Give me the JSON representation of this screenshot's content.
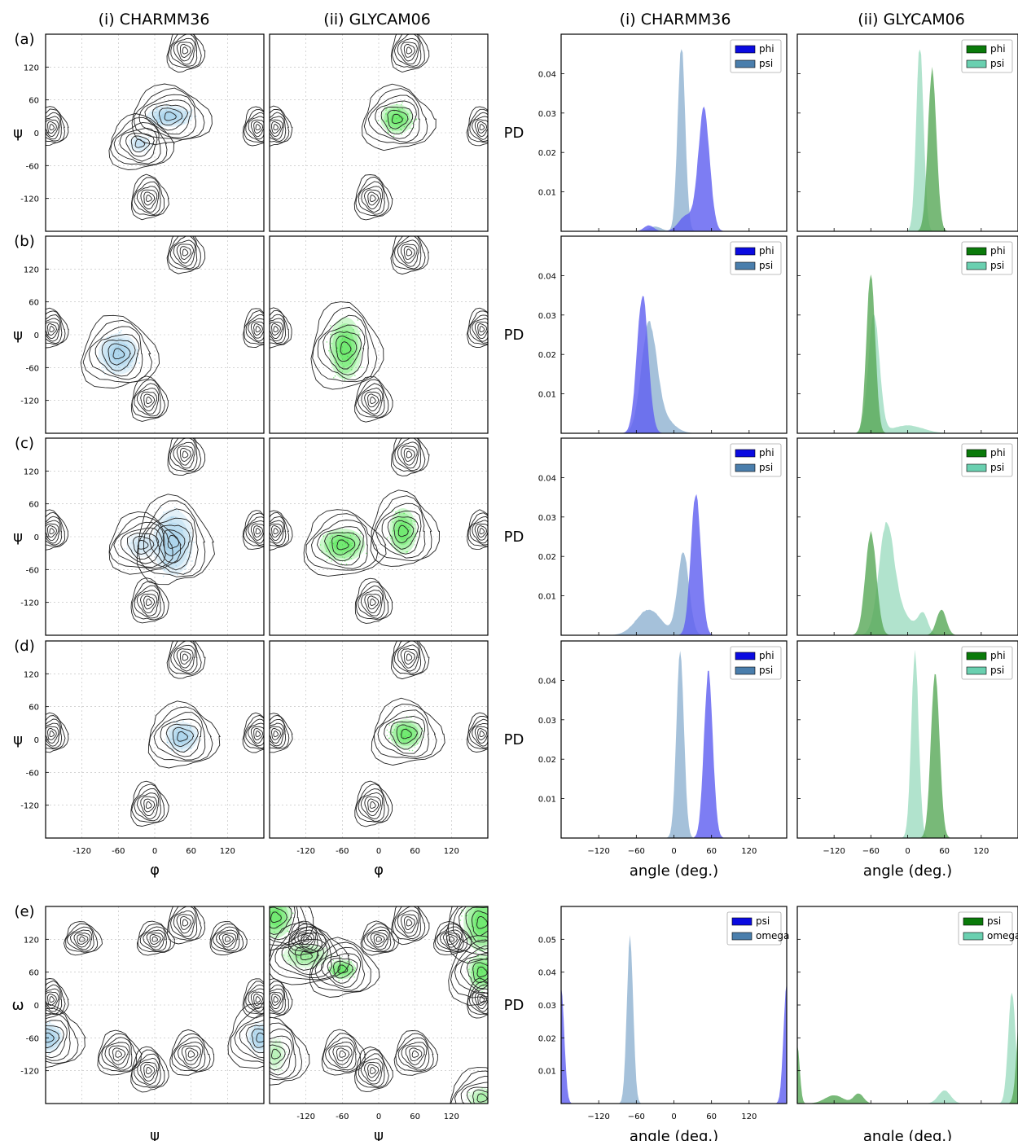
{
  "column_titles": [
    "(i) CHARMM36",
    "(ii) GLYCAM06",
    "(i) CHARMM36",
    "(ii) GLYCAM06"
  ],
  "rows": [
    {
      "letter": "(a)",
      "left_ylabel": "ψ",
      "show_bottom_ticks": false,
      "xlabel_left": "",
      "xlabel_right": "",
      "right_xlabel": "",
      "charmm_spots": [
        [
          25,
          30,
          25,
          13,
          1
        ],
        [
          -25,
          -20,
          12,
          10,
          0.55
        ]
      ],
      "glycam_spots": [
        [
          30,
          25,
          18,
          18,
          1
        ]
      ],
      "hist_charmm": {
        "legend": [
          "phi",
          "psi"
        ],
        "ymax": 0.05,
        "yticks": [
          0.01,
          0.02,
          0.03,
          0.04
        ],
        "peaks": {
          "a": [
            [
              48,
              9,
              0.031
            ],
            [
              20,
              12,
              0.004
            ],
            [
              -40,
              8,
              0.0015
            ]
          ],
          "b": [
            [
              12,
              6,
              0.047
            ],
            [
              -30,
              10,
              0.0012
            ]
          ]
        }
      },
      "hist_glycam": {
        "legend": [
          "phi",
          "psi"
        ],
        "peaks": {
          "a": [
            [
              40,
              7,
              0.041
            ]
          ],
          "b": [
            [
              20,
              6,
              0.047
            ]
          ]
        }
      }
    },
    {
      "letter": "(b)",
      "left_ylabel": "ψ",
      "show_bottom_ticks": false,
      "xlabel_left": "",
      "xlabel_right": "",
      "right_xlabel": "",
      "charmm_spots": [
        [
          -60,
          -35,
          22,
          25,
          1
        ]
      ],
      "glycam_spots": [
        [
          -55,
          -25,
          18,
          38,
          1
        ]
      ],
      "hist_charmm": {
        "legend": [
          "phi",
          "psi"
        ],
        "ymax": 0.05,
        "yticks": [
          0.01,
          0.02,
          0.03,
          0.04
        ],
        "peaks": {
          "a": [
            [
              -50,
              9,
              0.035
            ]
          ],
          "b": [
            [
              -40,
              12,
              0.026
            ],
            [
              -20,
              18,
              0.004
            ]
          ]
        }
      },
      "hist_glycam": {
        "legend": [
          "phi",
          "psi"
        ],
        "peaks": {
          "a": [
            [
              -60,
              7,
              0.041
            ]
          ],
          "b": [
            [
              -55,
              9,
              0.03
            ],
            [
              0,
              25,
              0.002
            ]
          ]
        }
      }
    },
    {
      "letter": "(c)",
      "left_ylabel": "ψ",
      "show_bottom_ticks": false,
      "xlabel_left": "",
      "xlabel_right": "",
      "right_xlabel": "",
      "charmm_spots": [
        [
          30,
          -10,
          22,
          40,
          1
        ],
        [
          -20,
          -15,
          18,
          15,
          0.5
        ]
      ],
      "glycam_spots": [
        [
          -60,
          -15,
          25,
          20,
          1
        ],
        [
          40,
          10,
          15,
          28,
          1
        ]
      ],
      "hist_charmm": {
        "legend": [
          "phi",
          "psi"
        ],
        "ymax": 0.05,
        "yticks": [
          0.01,
          0.02,
          0.03,
          0.04
        ],
        "peaks": {
          "a": [
            [
              35,
              8,
              0.036
            ]
          ],
          "b": [
            [
              15,
              9,
              0.021
            ],
            [
              -40,
              20,
              0.0065
            ]
          ]
        }
      },
      "hist_glycam": {
        "legend": [
          "phi",
          "psi"
        ],
        "peaks": {
          "a": [
            [
              -60,
              9,
              0.026
            ],
            [
              55,
              8,
              0.0065
            ]
          ],
          "b": [
            [
              -35,
              12,
              0.025
            ],
            [
              -15,
              20,
              0.006
            ],
            [
              25,
              8,
              0.005
            ]
          ]
        }
      }
    },
    {
      "letter": "(d)",
      "left_ylabel": "ψ",
      "show_bottom_ticks": true,
      "xlabel_left": "φ",
      "xlabel_right": "φ",
      "right_xlabel": "angle (deg.)",
      "charmm_spots": [
        [
          45,
          5,
          18,
          18,
          1
        ]
      ],
      "glycam_spots": [
        [
          45,
          10,
          18,
          18,
          1
        ]
      ],
      "hist_charmm": {
        "legend": [
          "phi",
          "psi"
        ],
        "ymax": 0.05,
        "yticks": [
          0.01,
          0.02,
          0.03,
          0.04
        ],
        "peaks": {
          "a": [
            [
              55,
              7,
              0.042
            ]
          ],
          "b": [
            [
              10,
              6,
              0.047
            ]
          ]
        }
      },
      "hist_glycam": {
        "legend": [
          "phi",
          "psi"
        ],
        "peaks": {
          "a": [
            [
              45,
              7,
              0.042
            ]
          ],
          "b": [
            [
              12,
              6,
              0.047
            ]
          ]
        }
      }
    },
    {
      "letter": "(e)",
      "left_ylabel": "ω",
      "show_bottom_ticks": true,
      "xlabel_left": "ψ",
      "xlabel_right": "ψ",
      "right_xlabel": "angle (deg.)",
      "charmm_spots": [
        [
          -175,
          -60,
          15,
          18,
          1
        ],
        [
          175,
          -60,
          15,
          18,
          1
        ]
      ],
      "glycam_spots": [
        [
          -170,
          160,
          18,
          25,
          1
        ],
        [
          170,
          150,
          20,
          35,
          1
        ],
        [
          -120,
          90,
          25,
          15,
          0.6
        ],
        [
          -60,
          65,
          15,
          12,
          1
        ],
        [
          170,
          60,
          15,
          22,
          1
        ],
        [
          -170,
          -90,
          10,
          20,
          0.4
        ],
        [
          170,
          -170,
          15,
          12,
          0.5
        ]
      ],
      "hist_charmm": {
        "legend": [
          "psi",
          "omega"
        ],
        "ymax": 0.06,
        "yticks": [
          0.01,
          0.02,
          0.03,
          0.04,
          0.05
        ],
        "peaks": {
          "a": [
            [
              -180,
              5,
              0.035
            ],
            [
              180,
              5,
              0.037
            ]
          ],
          "b": [
            [
              -70,
              5,
              0.051
            ]
          ]
        }
      },
      "hist_glycam": {
        "legend": [
          "psi",
          "omega"
        ],
        "peaks": {
          "a": [
            [
              -180,
              4,
              0.018
            ],
            [
              -120,
              15,
              0.0025
            ],
            [
              -80,
              8,
              0.003
            ],
            [
              185,
              6,
              0.034
            ]
          ],
          "b": [
            [
              60,
              10,
              0.004
            ],
            [
              170,
              6,
              0.034
            ]
          ]
        }
      }
    }
  ],
  "right_ylabel": "PD",
  "xticks": [
    -120,
    -60,
    0,
    60,
    120
  ],
  "yticks": [
    120,
    60,
    0,
    -60,
    -120
  ],
  "colors": {
    "charmm_spot": "#7ec0e4",
    "glycam_spot": "#22dd22",
    "charmm_a": "#6060f0",
    "charmm_b": "#9bbad6",
    "glycam_a": "#5aaa5a",
    "glycam_b": "#a8e0c8",
    "charmm_legend_a": "#0a0ae0",
    "charmm_legend_b": "#4a7eac",
    "glycam_legend_a": "#0a7a0a",
    "glycam_legend_b": "#6ad0b0",
    "contour": "#222222",
    "grid": "#bbbbbb"
  }
}
